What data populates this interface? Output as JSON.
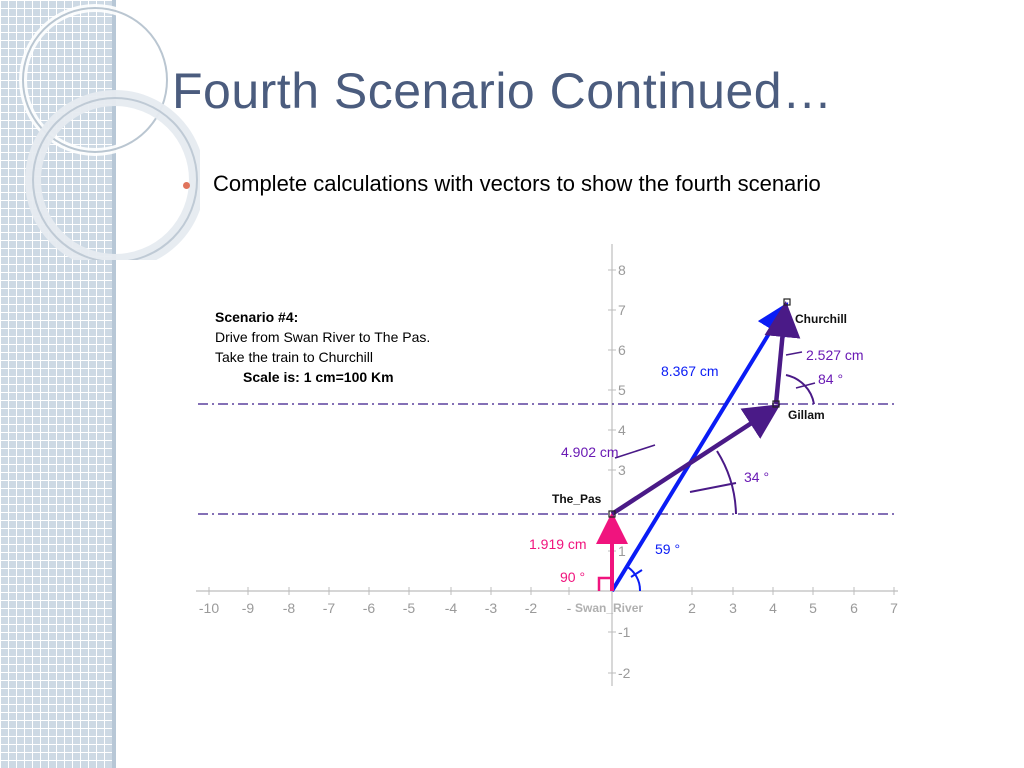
{
  "slide": {
    "title": "Fourth Scenario Continued…",
    "bullets": [
      "Complete calculations with vectors to show the fourth scenario"
    ]
  },
  "diagram": {
    "note": {
      "title": "Scenario #4:",
      "line1": "Drive from Swan River to The Pas.",
      "line2": "Take the train to Churchill",
      "scale": "Scale is: 1 cm=100 Km"
    },
    "x_ticks": [
      "-10",
      "-9",
      "-8",
      "-7",
      "-6",
      "-5",
      "-4",
      "-3",
      "-2",
      "-",
      "2",
      "3",
      "4",
      "5",
      "6",
      "7"
    ],
    "y_ticks": [
      "8",
      "7",
      "6",
      "5",
      "4",
      "3",
      "1",
      "-1",
      "-2"
    ],
    "points": {
      "swan_river": "Swan_River",
      "the_pas": "The_Pas",
      "gillam": "Gillam",
      "churchill": "Churchill"
    },
    "measurements": {
      "v1_length": "1.919 cm",
      "v1_angle": "90 °",
      "v2_length": "4.902 cm",
      "v2_angle": "34 °",
      "v3_length": "2.527 cm",
      "v3_angle": "84 °",
      "resultant_length": "8.367 cm",
      "resultant_angle": "59 °"
    },
    "colors": {
      "vector1": "#f0147e",
      "vector2": "#4a1a87",
      "vector3": "#4a1a87",
      "resultant": "#0a1cf5",
      "labels_purple": "#6a1ab4",
      "labels_blue": "#0a1cf5",
      "guide_line": "#3a1a8a"
    }
  }
}
